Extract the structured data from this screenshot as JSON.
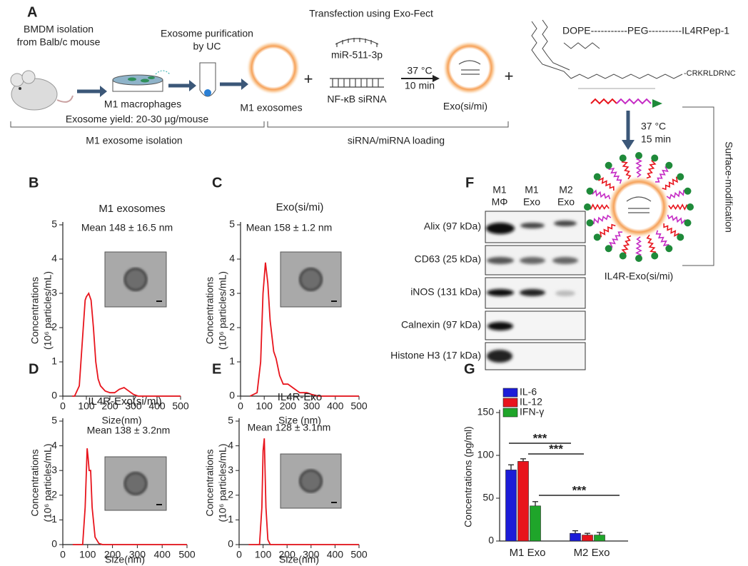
{
  "schematic": {
    "panel_label": "A",
    "isolation": [
      "BMDM isolation",
      "from Balb/c mouse"
    ],
    "purification": [
      "Exosome purification",
      "by UC"
    ],
    "transfection": "Transfection using Exo-Fect",
    "mirna": "miR-511-3p",
    "sirna": "NF-κB siRNA",
    "incubation1": [
      "37 °C",
      "10 min"
    ],
    "macrophages": "M1 macrophages",
    "m1_exosomes": "M1 exosomes",
    "loaded": "Exo(si/mi)",
    "plus": [
      "+",
      "+"
    ],
    "conjugate": "DOPE-----------PEG----------IL4RPep-1",
    "peptide": "-CRKRLDRNC",
    "yield": "Exosome yield: 20-30 µg/mouse",
    "stage1": "M1 exosome isolation",
    "stage2": "siRNA/miRNA  loading",
    "incubation2": [
      "37 °C",
      "15 min"
    ],
    "modification": "Surface-modification",
    "product": "IL4R-Exo(si/mi)"
  },
  "blot": {
    "panel_label": "F",
    "columns": [
      [
        "M1",
        "MΦ"
      ],
      [
        "M1",
        "Exo"
      ],
      [
        "M2",
        "Exo"
      ]
    ],
    "rows": [
      "Alix (97 kDa)",
      "CD63 (25 kDa)",
      "iNOS (131 kDa)",
      "Calnexin (97 kDa)",
      "Histone H3 (17 kDa)"
    ]
  },
  "chart_data": [
    {
      "type": "line",
      "panel_label": "B",
      "title": "M1 exosomes",
      "annotation": "Mean 148 ± 16.5 nm",
      "ylabel": [
        "Concentrations",
        "(10⁶ particles/mL)"
      ],
      "xlabel": "Size(nm)",
      "color": "#e8141c",
      "x": [
        40,
        50,
        70,
        85,
        95,
        100,
        110,
        120,
        130,
        140,
        150,
        160,
        180,
        200,
        220,
        240,
        260,
        280,
        300,
        320,
        400,
        500
      ],
      "values": [
        0,
        0,
        0.3,
        1.8,
        2.8,
        2.9,
        3.0,
        2.8,
        2.0,
        1.0,
        0.5,
        0.3,
        0.15,
        0.1,
        0.1,
        0.2,
        0.25,
        0.15,
        0.05,
        0,
        0,
        0
      ],
      "xlim": [
        0,
        500
      ],
      "xticks": [
        0,
        100,
        200,
        300,
        400,
        500
      ],
      "ylim": [
        0,
        5
      ],
      "yticks": [
        0,
        1,
        2,
        3,
        4,
        5
      ]
    },
    {
      "type": "line",
      "panel_label": "C",
      "title": "Exo(si/mi)",
      "annotation": "Mean 158 ± 1.2 nm",
      "ylabel": [
        "Concentrations",
        "(10⁶ particles/mL)"
      ],
      "xlabel": "Size (nm)",
      "color": "#e8141c",
      "x": [
        40,
        70,
        85,
        95,
        105,
        115,
        125,
        140,
        150,
        165,
        180,
        200,
        220,
        250,
        280,
        300,
        330,
        400,
        500
      ],
      "values": [
        0,
        0.1,
        1.0,
        3.0,
        3.9,
        3.3,
        2.2,
        1.3,
        1.1,
        0.6,
        0.35,
        0.35,
        0.25,
        0.1,
        0.1,
        0.05,
        0,
        0,
        0
      ],
      "xlim": [
        0,
        500
      ],
      "xticks": [
        0,
        100,
        200,
        300,
        400,
        500
      ],
      "ylim": [
        0,
        5
      ],
      "yticks": [
        0,
        1,
        2,
        3,
        4,
        5
      ]
    },
    {
      "type": "line",
      "panel_label": "D",
      "title": "IL4R-Exo(si/mi)",
      "annotation": "Mean 138 ± 3.2nm",
      "ylabel": [
        "Concentrations",
        "(10⁶ particles/mL)"
      ],
      "xlabel": "Size(nm)",
      "color": "#e8141c",
      "x": [
        40,
        80,
        90,
        98,
        102,
        106,
        112,
        118,
        130,
        145,
        160,
        300,
        500
      ],
      "values": [
        0,
        0,
        1.5,
        3.9,
        3.5,
        3.0,
        3.0,
        1.5,
        0.3,
        0.05,
        0,
        0,
        0
      ],
      "xlim": [
        0,
        500
      ],
      "xticks": [
        0,
        100,
        200,
        300,
        400,
        500
      ],
      "ylim": [
        0,
        5
      ],
      "yticks": [
        0,
        1,
        2,
        3,
        4,
        5
      ]
    },
    {
      "type": "line",
      "panel_label": "E",
      "title": "IL4R-Exo",
      "annotation": "Mean 128 ± 3.1nm",
      "ylabel": [
        "Concentrations",
        "(10⁶ particles/mL)"
      ],
      "xlabel": "Size(nm)",
      "color": "#e8141c",
      "x": [
        40,
        85,
        95,
        100,
        105,
        112,
        120,
        130,
        300,
        500
      ],
      "values": [
        0,
        0,
        1.5,
        3.8,
        4.3,
        1.5,
        0.2,
        0,
        0,
        0
      ],
      "xlim": [
        0,
        500
      ],
      "xticks": [
        0,
        100,
        200,
        300,
        400,
        500
      ],
      "ylim": [
        0,
        5
      ],
      "yticks": [
        0,
        1,
        2,
        3,
        4,
        5
      ]
    },
    {
      "type": "bar",
      "panel_label": "G",
      "ylabel": "Concentrations (pg/ml)",
      "categories": [
        "M1 Exo",
        "M2 Exo"
      ],
      "series": [
        {
          "name": "IL-6",
          "color": "#1c1cd8",
          "values": [
            83,
            9
          ],
          "errors": [
            6,
            3
          ]
        },
        {
          "name": "IL-12",
          "color": "#e8141c",
          "values": [
            93,
            7
          ],
          "errors": [
            3,
            2
          ]
        },
        {
          "name": "IFN-γ",
          "color": "#1fa52a",
          "values": [
            41,
            7
          ],
          "errors": [
            5,
            3
          ]
        }
      ],
      "annotations": [
        "***",
        "***",
        "***"
      ],
      "legend": "top-left",
      "ylim": [
        0,
        150
      ],
      "yticks": [
        0,
        50,
        100,
        150
      ]
    }
  ]
}
